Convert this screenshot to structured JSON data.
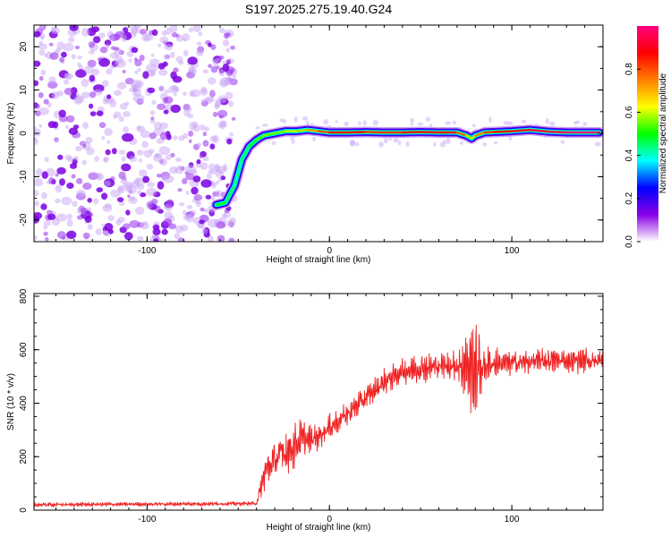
{
  "figure": {
    "title": "S197.2025.275.19.40.G24"
  },
  "chart_data": [
    {
      "type": "heatmap",
      "title": "S197.2025.275.19.40.G24",
      "xlabel": "Height of straight line (km)",
      "ylabel": "Frequency (Hz)",
      "xlim": [
        -162,
        150
      ],
      "ylim": [
        -25,
        25
      ],
      "x_ticks": [
        -100,
        0,
        100
      ],
      "x_tick_labels": [
        "-100",
        "0",
        "100"
      ],
      "y_ticks": [
        -20,
        -10,
        0,
        10,
        20
      ],
      "y_tick_labels": [
        "-20",
        "-10",
        "0",
        "10",
        "20"
      ],
      "grid": false,
      "noise_region_x": [
        -162,
        -52
      ],
      "noise_frequency_range_hz": [
        -25,
        25
      ],
      "ridge": {
        "x": [
          -62,
          -57,
          -52,
          -48,
          -44,
          -40,
          -36,
          -30,
          -24,
          -18,
          -12,
          -6,
          0,
          10,
          20,
          30,
          40,
          50,
          60,
          70,
          75,
          78,
          80,
          85,
          90,
          100,
          110,
          120,
          130,
          140,
          148
        ],
        "freq": [
          -16.5,
          -16,
          -12,
          -6,
          -3,
          -1.5,
          -0.5,
          0,
          0.5,
          0.5,
          0.8,
          0.5,
          0.2,
          0.2,
          0.3,
          0.2,
          0.2,
          0.3,
          0.2,
          0.2,
          -0.5,
          -1.2,
          -0.5,
          0.2,
          0.3,
          0.5,
          0.8,
          0.4,
          0.2,
          0.2,
          0.2
        ],
        "amp": [
          0.45,
          0.5,
          0.35,
          0.4,
          0.45,
          0.5,
          0.6,
          0.55,
          0.6,
          0.65,
          0.7,
          0.75,
          0.85,
          0.9,
          0.85,
          0.8,
          0.85,
          0.9,
          0.9,
          0.85,
          0.7,
          0.6,
          0.7,
          0.8,
          0.85,
          0.9,
          0.95,
          0.95,
          1.0,
          1.0,
          1.0
        ]
      },
      "colorbar": {
        "label": "Normalized spectral amplitude",
        "range": [
          0,
          1
        ],
        "ticks": [
          0,
          0.2,
          0.4,
          0.6,
          0.8
        ],
        "tick_labels": [
          "0.0",
          "0.2",
          "0.4",
          "0.6",
          "0.8"
        ],
        "colors": [
          "#ffffff",
          "#8a00e6",
          "#0000ff",
          "#00ffff",
          "#00ff00",
          "#ffff00",
          "#ff7f00",
          "#ff0000",
          "#ff007f"
        ]
      }
    },
    {
      "type": "line",
      "xlabel": "Height of straight line (km)",
      "ylabel": "SNR (10 * v/v)",
      "xlim": [
        -162,
        150
      ],
      "ylim": [
        0,
        810
      ],
      "x_ticks": [
        -100,
        0,
        100
      ],
      "x_tick_labels": [
        "-100",
        "0",
        "100"
      ],
      "y_ticks": [
        0,
        200,
        400,
        600,
        800
      ],
      "y_tick_labels": [
        "0",
        "200",
        "400",
        "600",
        "800"
      ],
      "grid": false,
      "color": "#ee2222",
      "envelope": {
        "x": [
          -162,
          -40,
          -38,
          -35,
          -30,
          -20,
          -15,
          -10,
          0,
          10,
          20,
          30,
          40,
          50,
          60,
          70,
          75,
          80,
          85,
          90,
          100,
          120,
          150
        ],
        "mean": [
          20,
          25,
          70,
          150,
          190,
          240,
          270,
          260,
          310,
          360,
          420,
          480,
          520,
          530,
          540,
          540,
          540,
          530,
          540,
          550,
          550,
          560,
          560
        ],
        "spread": [
          8,
          8,
          40,
          70,
          80,
          100,
          70,
          60,
          50,
          50,
          50,
          50,
          50,
          60,
          50,
          60,
          150,
          200,
          80,
          60,
          50,
          50,
          50
        ]
      }
    }
  ]
}
